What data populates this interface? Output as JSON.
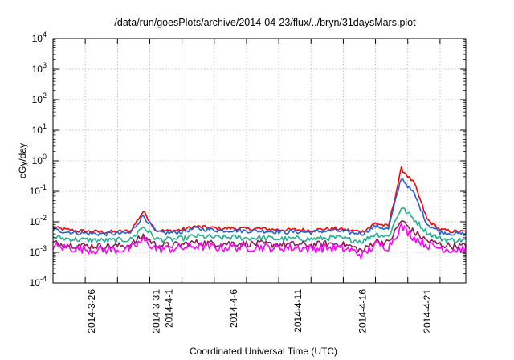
{
  "chart_data": {
    "type": "line",
    "title": "/data/run/goesPlots/archive/2014-04-23/flux/../bryn/31daysMars.plot",
    "xlabel": "Coordinated Universal Time (UTC)",
    "ylabel": "cGy/day",
    "yscale": "log",
    "ylim": [
      0.0001,
      10000
    ],
    "xlim": [
      "2014-03-23",
      "2014-04-24"
    ],
    "grid": true,
    "legend": "none",
    "x_ticks": [
      "2014-3-26",
      "2014-3-31",
      "2014-4-1",
      "2014-4-6",
      "2014-4-11",
      "2014-4-16",
      "2014-4-21"
    ],
    "y_ticks": [
      {
        "value": 0.0001,
        "base": "10",
        "exp": "-4"
      },
      {
        "value": 0.001,
        "base": "10",
        "exp": "-3"
      },
      {
        "value": 0.01,
        "base": "10",
        "exp": "-2"
      },
      {
        "value": 0.1,
        "base": "10",
        "exp": "-1"
      },
      {
        "value": 1,
        "base": "10",
        "exp": "0"
      },
      {
        "value": 10,
        "base": "10",
        "exp": "1"
      },
      {
        "value": 100,
        "base": "10",
        "exp": "2"
      },
      {
        "value": 1000,
        "base": "10",
        "exp": "3"
      },
      {
        "value": 10000,
        "base": "10",
        "exp": "4"
      }
    ],
    "x": [
      "2014-03-23",
      "2014-03-24",
      "2014-03-25",
      "2014-03-26",
      "2014-03-27",
      "2014-03-28",
      "2014-03-29",
      "2014-03-30",
      "2014-03-31",
      "2014-04-01",
      "2014-04-02",
      "2014-04-03",
      "2014-04-04",
      "2014-04-05",
      "2014-04-06",
      "2014-04-07",
      "2014-04-08",
      "2014-04-09",
      "2014-04-10",
      "2014-04-11",
      "2014-04-12",
      "2014-04-13",
      "2014-04-14",
      "2014-04-15",
      "2014-04-16",
      "2014-04-17",
      "2014-04-18",
      "2014-04-19",
      "2014-04-20",
      "2014-04-21",
      "2014-04-22",
      "2014-04-23",
      "2014-04-24"
    ],
    "series": [
      {
        "color": "#ff0000",
        "values": [
          0.0065,
          0.0055,
          0.005,
          0.0048,
          0.0046,
          0.0047,
          0.005,
          0.022,
          0.0052,
          0.005,
          0.0055,
          0.007,
          0.0065,
          0.006,
          0.0062,
          0.0058,
          0.006,
          0.0056,
          0.0054,
          0.0055,
          0.0052,
          0.0058,
          0.006,
          0.0052,
          0.0048,
          0.009,
          0.007,
          0.55,
          0.18,
          0.012,
          0.0055,
          0.0048,
          0.0047
        ]
      },
      {
        "color": "#1f5fe0",
        "values": [
          0.0055,
          0.0047,
          0.0043,
          0.0041,
          0.004,
          0.0041,
          0.0043,
          0.016,
          0.0045,
          0.0043,
          0.0047,
          0.006,
          0.0056,
          0.0052,
          0.0053,
          0.005,
          0.0051,
          0.0048,
          0.0046,
          0.0047,
          0.0045,
          0.005,
          0.0051,
          0.0044,
          0.0041,
          0.0072,
          0.0058,
          0.28,
          0.08,
          0.0085,
          0.0046,
          0.0041,
          0.004
        ]
      },
      {
        "color": "#20b090",
        "values": [
          0.0032,
          0.0028,
          0.0026,
          0.0025,
          0.0024,
          0.0025,
          0.0026,
          0.007,
          0.0027,
          0.0026,
          0.0028,
          0.0034,
          0.0032,
          0.003,
          0.0031,
          0.0029,
          0.003,
          0.0028,
          0.0027,
          0.0028,
          0.0027,
          0.0029,
          0.003,
          0.0026,
          0.0023,
          0.004,
          0.0033,
          0.03,
          0.012,
          0.0045,
          0.0028,
          0.0025,
          0.0025
        ]
      },
      {
        "color": "#8a2050",
        "values": [
          0.002,
          0.0018,
          0.0017,
          0.0016,
          0.0016,
          0.0016,
          0.0017,
          0.0035,
          0.0017,
          0.0017,
          0.0018,
          0.0021,
          0.002,
          0.0019,
          0.002,
          0.0019,
          0.0019,
          0.0018,
          0.0018,
          0.0018,
          0.0017,
          0.0019,
          0.0019,
          0.0016,
          0.0011,
          0.0024,
          0.002,
          0.011,
          0.0045,
          0.0024,
          0.0018,
          0.0016,
          0.0016
        ]
      },
      {
        "color": "#ff00ff",
        "values": [
          0.0016,
          0.0014,
          0.0013,
          0.0012,
          0.0012,
          0.0012,
          0.0013,
          0.0025,
          0.0013,
          0.0013,
          0.0014,
          0.0016,
          0.0015,
          0.0014,
          0.0015,
          0.0014,
          0.0015,
          0.0014,
          0.0014,
          0.0014,
          0.0013,
          0.0014,
          0.0014,
          0.0012,
          0.0008,
          0.0018,
          0.0015,
          0.007,
          0.003,
          0.0017,
          0.0014,
          0.0012,
          0.0013
        ]
      }
    ]
  }
}
